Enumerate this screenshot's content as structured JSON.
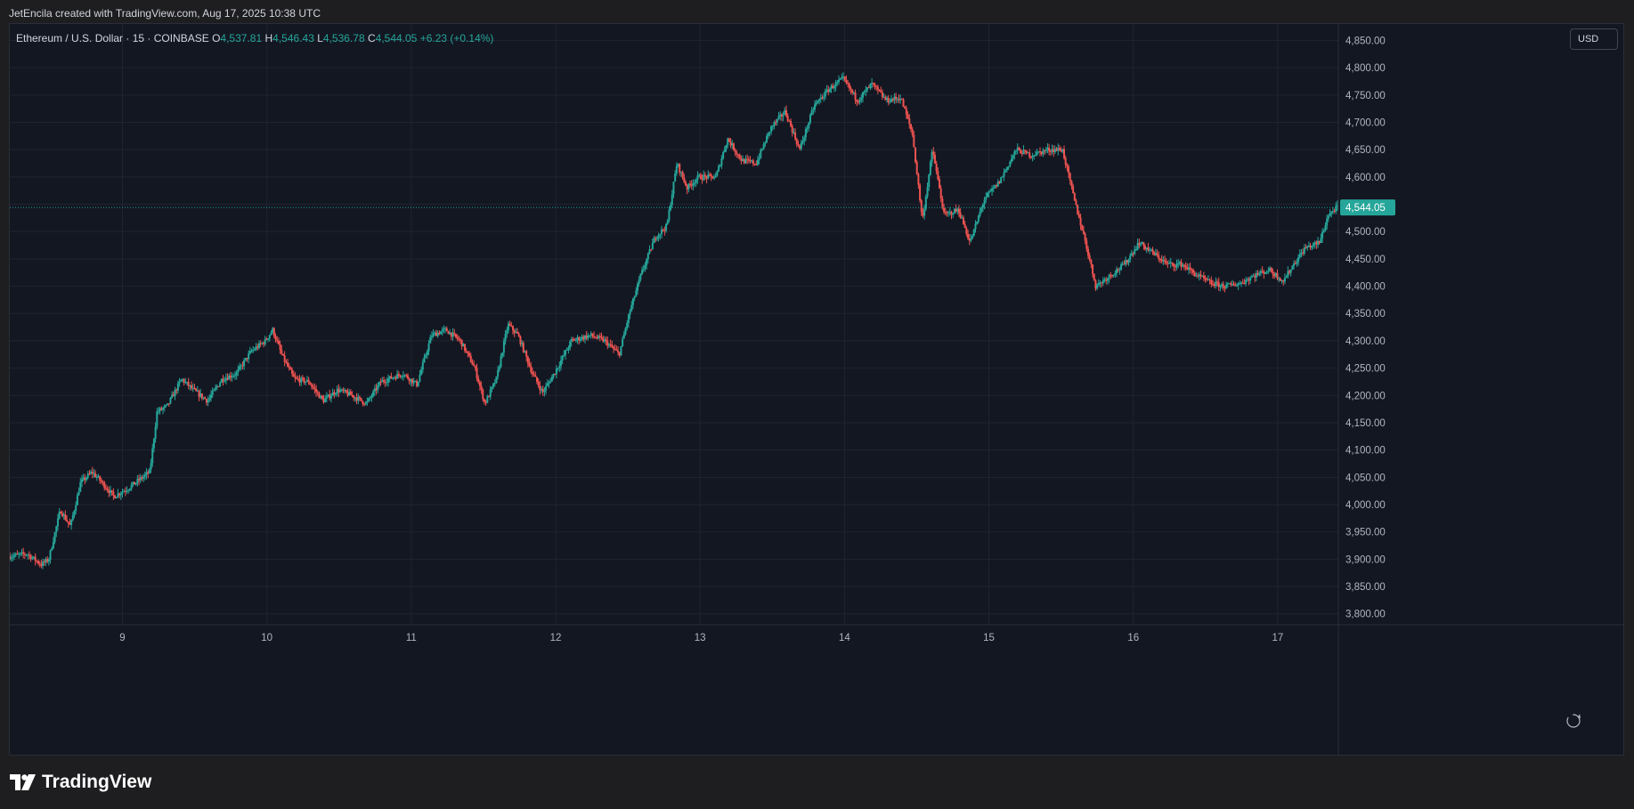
{
  "header": {
    "attribution": "JetEncila created with TradingView.com, Aug 17, 2025 10:38 UTC"
  },
  "legend": {
    "symbol": "Ethereum / U.S. Dollar · 15 · COINBASE",
    "open_key": "O",
    "open": "4,537.81",
    "high_key": "H",
    "high": "4,546.43",
    "low_key": "L",
    "low": "4,536.78",
    "close_key": "C",
    "close": "4,544.05",
    "change": "+6.23 (+0.14%)"
  },
  "currency_button": "USD",
  "last_price_label": "4,544.05",
  "footer": {
    "brand": "TradingView"
  },
  "colors": {
    "up": "#26a69a",
    "down": "#ef5350",
    "background": "#131722",
    "grid": "#1f2430",
    "axis_text": "#b2b5be"
  },
  "chart_data": {
    "type": "candlestick",
    "symbol": "ETHUSD",
    "interval": "15",
    "ylim": [
      3780,
      4880
    ],
    "xlim": [
      8.22,
      17.42
    ],
    "y_ticks": [
      3800,
      3850,
      3900,
      3950,
      4000,
      4050,
      4100,
      4150,
      4200,
      4250,
      4300,
      4350,
      4400,
      4450,
      4500,
      4550,
      4600,
      4650,
      4700,
      4750,
      4800,
      4850
    ],
    "y_tick_labels": [
      "3,800.00",
      "3,850.00",
      "3,900.00",
      "3,950.00",
      "4,000.00",
      "4,050.00",
      "4,100.00",
      "4,150.00",
      "4,200.00",
      "4,250.00",
      "4,300.00",
      "4,350.00",
      "4,400.00",
      "4,450.00",
      "4,500.00",
      "4,550.00",
      "4,600.00",
      "4,650.00",
      "4,700.00",
      "4,750.00",
      "4,800.00",
      "4,850.00"
    ],
    "x_ticks": [
      9,
      10,
      11,
      12,
      13,
      14,
      15,
      16,
      17
    ],
    "x_tick_labels": [
      "9",
      "10",
      "11",
      "12",
      "13",
      "14",
      "15",
      "16",
      "17"
    ],
    "last_price": 4544.05,
    "price_path": [
      [
        8.22,
        3905
      ],
      [
        8.35,
        3910
      ],
      [
        8.45,
        3890
      ],
      [
        8.5,
        3900
      ],
      [
        8.58,
        3990
      ],
      [
        8.65,
        3960
      ],
      [
        8.72,
        4040
      ],
      [
        8.8,
        4060
      ],
      [
        8.87,
        4040
      ],
      [
        8.95,
        4015
      ],
      [
        9.05,
        4030
      ],
      [
        9.2,
        4060
      ],
      [
        9.25,
        4170
      ],
      [
        9.32,
        4180
      ],
      [
        9.42,
        4230
      ],
      [
        9.5,
        4210
      ],
      [
        9.6,
        4190
      ],
      [
        9.7,
        4230
      ],
      [
        9.8,
        4240
      ],
      [
        9.9,
        4280
      ],
      [
        10.0,
        4300
      ],
      [
        10.05,
        4320
      ],
      [
        10.12,
        4270
      ],
      [
        10.2,
        4230
      ],
      [
        10.3,
        4225
      ],
      [
        10.4,
        4190
      ],
      [
        10.5,
        4210
      ],
      [
        10.6,
        4200
      ],
      [
        10.7,
        4185
      ],
      [
        10.8,
        4225
      ],
      [
        10.95,
        4240
      ],
      [
        11.05,
        4220
      ],
      [
        11.15,
        4310
      ],
      [
        11.25,
        4320
      ],
      [
        11.35,
        4300
      ],
      [
        11.45,
        4250
      ],
      [
        11.52,
        4185
      ],
      [
        11.6,
        4230
      ],
      [
        11.68,
        4330
      ],
      [
        11.75,
        4310
      ],
      [
        11.85,
        4240
      ],
      [
        11.92,
        4205
      ],
      [
        12.0,
        4240
      ],
      [
        12.12,
        4300
      ],
      [
        12.25,
        4310
      ],
      [
        12.35,
        4300
      ],
      [
        12.45,
        4275
      ],
      [
        12.52,
        4350
      ],
      [
        12.6,
        4420
      ],
      [
        12.7,
        4490
      ],
      [
        12.78,
        4510
      ],
      [
        12.85,
        4625
      ],
      [
        12.92,
        4580
      ],
      [
        13.0,
        4600
      ],
      [
        13.12,
        4600
      ],
      [
        13.2,
        4670
      ],
      [
        13.3,
        4630
      ],
      [
        13.4,
        4625
      ],
      [
        13.5,
        4690
      ],
      [
        13.6,
        4720
      ],
      [
        13.7,
        4650
      ],
      [
        13.8,
        4730
      ],
      [
        13.9,
        4760
      ],
      [
        14.0,
        4780
      ],
      [
        14.1,
        4740
      ],
      [
        14.2,
        4770
      ],
      [
        14.3,
        4740
      ],
      [
        14.4,
        4745
      ],
      [
        14.48,
        4680
      ],
      [
        14.55,
        4520
      ],
      [
        14.62,
        4650
      ],
      [
        14.7,
        4530
      ],
      [
        14.8,
        4540
      ],
      [
        14.88,
        4480
      ],
      [
        14.98,
        4560
      ],
      [
        15.08,
        4590
      ],
      [
        15.2,
        4650
      ],
      [
        15.3,
        4640
      ],
      [
        15.42,
        4650
      ],
      [
        15.52,
        4650
      ],
      [
        15.6,
        4560
      ],
      [
        15.68,
        4480
      ],
      [
        15.75,
        4400
      ],
      [
        15.85,
        4420
      ],
      [
        15.95,
        4440
      ],
      [
        16.05,
        4480
      ],
      [
        16.15,
        4460
      ],
      [
        16.25,
        4440
      ],
      [
        16.35,
        4440
      ],
      [
        16.45,
        4420
      ],
      [
        16.55,
        4405
      ],
      [
        16.65,
        4400
      ],
      [
        16.75,
        4405
      ],
      [
        16.85,
        4420
      ],
      [
        16.95,
        4430
      ],
      [
        17.05,
        4410
      ],
      [
        17.12,
        4440
      ],
      [
        17.2,
        4470
      ],
      [
        17.3,
        4480
      ],
      [
        17.36,
        4530
      ],
      [
        17.42,
        4544
      ]
    ]
  }
}
